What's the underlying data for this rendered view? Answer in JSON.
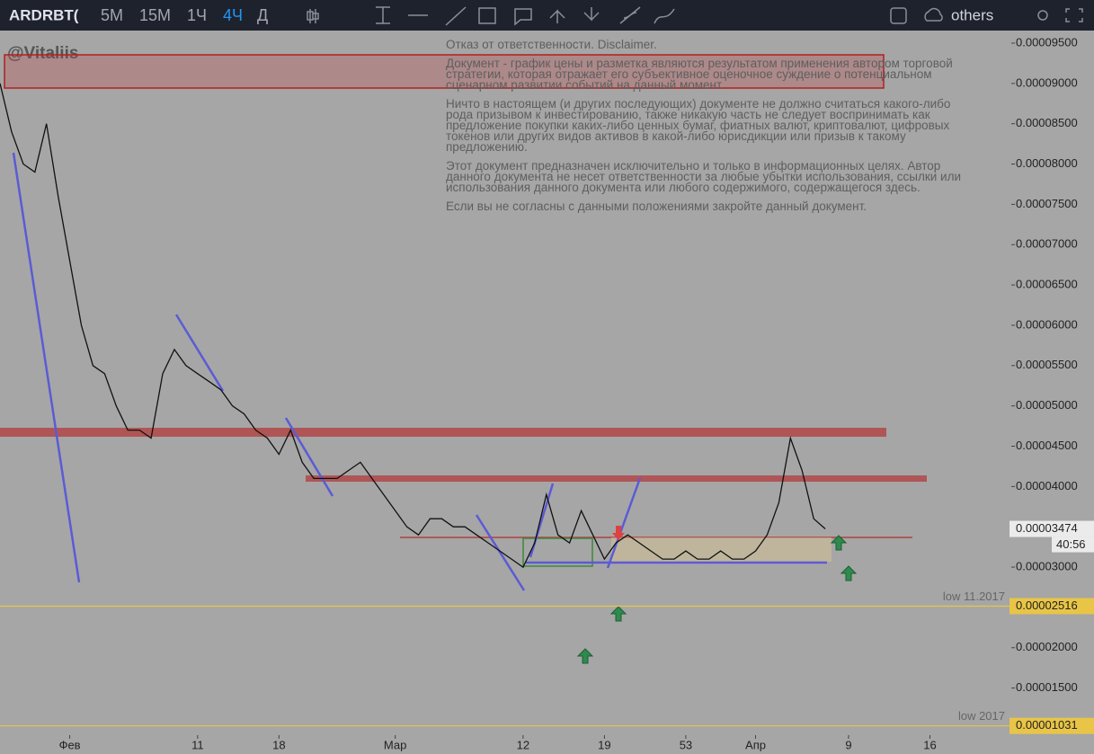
{
  "toolbar": {
    "symbol": "ARDRBT(",
    "intervals": [
      "5M",
      "15M",
      "1Ч",
      "4Ч",
      "Д"
    ],
    "active_interval": 3,
    "others": "others"
  },
  "watermark": "@Vitaliis",
  "disclaimer": [
    "Отказ от ответственности. Disclaimer.",
    "Документ - график цены и разметка являются результатом применения автором торговой стратегии, которая отражает его субъективное оценочное суждение о потенциальном сценарном развитии событий на данный момент.",
    "Ничто в настоящем (и других последующих) документе не должно считаться какого-либо рода призывом к инвестированию, также никакую часть не следует воспринимать как предложение покупки каких-либо ценных бумаг, фиатных валют, криптовалют, цифровых токенов или других видов активов в какой-либо юрисдикции или призыв к такому предложению.",
    "Этот документ предназначен исключительно и только в информационных целях. Автор данного документа не несет ответственности за любые убытки использования, ссылки или использования данного документа или любого содержимого, содержащегося здесь.",
    "Если вы не согласны с данными положениями закройте данный документ."
  ],
  "chart_data": {
    "type": "line",
    "color": "#111111",
    "x": [
      -6,
      -5,
      -4,
      -3,
      -2,
      -1,
      0,
      1,
      2,
      3,
      4,
      5,
      6,
      7,
      8,
      9,
      10,
      11,
      12,
      13,
      14,
      15,
      16,
      17,
      18,
      19,
      20,
      21,
      22,
      23,
      24,
      25,
      26,
      27,
      28,
      29,
      30,
      31,
      32,
      33,
      34,
      35,
      36,
      37,
      38,
      39,
      40,
      41,
      42,
      43,
      44,
      45,
      46,
      47,
      48,
      49,
      50,
      51,
      52,
      53,
      54,
      55,
      56,
      57,
      58,
      59,
      60,
      61,
      62,
      63,
      64,
      65
    ],
    "values": [
      9e-05,
      8.4e-05,
      8e-05,
      7.9e-05,
      8.5e-05,
      7.6e-05,
      6.8e-05,
      6e-05,
      5.5e-05,
      5.4e-05,
      5e-05,
      4.7e-05,
      4.7e-05,
      4.6e-05,
      5.4e-05,
      5.7e-05,
      5.5e-05,
      5.4e-05,
      5.3e-05,
      5.2e-05,
      5e-05,
      4.9e-05,
      4.7e-05,
      4.6e-05,
      4.4e-05,
      4.7e-05,
      4.3e-05,
      4.1e-05,
      4.1e-05,
      4.1e-05,
      4.2e-05,
      4.3e-05,
      4.1e-05,
      3.9e-05,
      3.7e-05,
      3.5e-05,
      3.4e-05,
      3.6e-05,
      3.6e-05,
      3.5e-05,
      3.5e-05,
      3.4e-05,
      3.3e-05,
      3.2e-05,
      3.1e-05,
      3e-05,
      3.3e-05,
      3.9e-05,
      3.4e-05,
      3.3e-05,
      3.7e-05,
      3.4e-05,
      3.1e-05,
      3.3e-05,
      3.4e-05,
      3.3e-05,
      3.2e-05,
      3.1e-05,
      3.1e-05,
      3.2e-05,
      3.1e-05,
      3.1e-05,
      3.2e-05,
      3.1e-05,
      3.1e-05,
      3.2e-05,
      3.4e-05,
      3.8e-05,
      4.6e-05,
      4.2e-05,
      3.6e-05,
      3.474e-05
    ],
    "xlim": [
      -6,
      81
    ],
    "xticks": [
      {
        "value": 0,
        "label": "Фев"
      },
      11,
      18,
      {
        "value": 28,
        "label": "Мар"
      },
      {
        "value": 39,
        "label": "12"
      },
      {
        "value": 46,
        "label": "19"
      },
      53,
      {
        "value": 59,
        "label": "Апр"
      },
      {
        "value": 67,
        "label": "9"
      },
      {
        "value": 74,
        "label": "16"
      }
    ],
    "ylim": [
      9.16e-06,
      9.656e-05
    ],
    "yticks": [
      {
        "value": 9.5e-05,
        "label": "0.00009500"
      },
      {
        "value": 9e-05,
        "label": "0.00009000"
      },
      {
        "value": 8.5e-05,
        "label": "0.00008500"
      },
      {
        "value": 8e-05,
        "label": "0.00008000"
      },
      {
        "value": 7.5e-05,
        "label": "0.00007500"
      },
      {
        "value": 7e-05,
        "label": "0.00007000"
      },
      {
        "value": 6.5e-05,
        "label": "0.00006500"
      },
      {
        "value": 6e-05,
        "label": "0.00006000"
      },
      {
        "value": 5.5e-05,
        "label": "0.00005500"
      },
      {
        "value": 5e-05,
        "label": "0.00005000"
      },
      {
        "value": 4.5e-05,
        "label": "0.00004500"
      },
      {
        "value": 4e-05,
        "label": "0.00004000"
      },
      {
        "value": 3e-05,
        "label": "0.00003000"
      },
      {
        "value": 2e-05,
        "label": "0.00002000"
      },
      {
        "value": 1.5e-05,
        "label": "0.00001500"
      }
    ],
    "current_price": {
      "value": 3.474e-05,
      "label": "0.00003474",
      "countdown": "40:56"
    },
    "levels": [
      {
        "value": 2.516e-05,
        "label": "0.00002516",
        "text": "low 11.2017",
        "color": "#e8c547"
      },
      {
        "value": 1.031e-05,
        "label": "0.00001031",
        "text": "low 2017",
        "color": "#e8c547"
      }
    ]
  }
}
